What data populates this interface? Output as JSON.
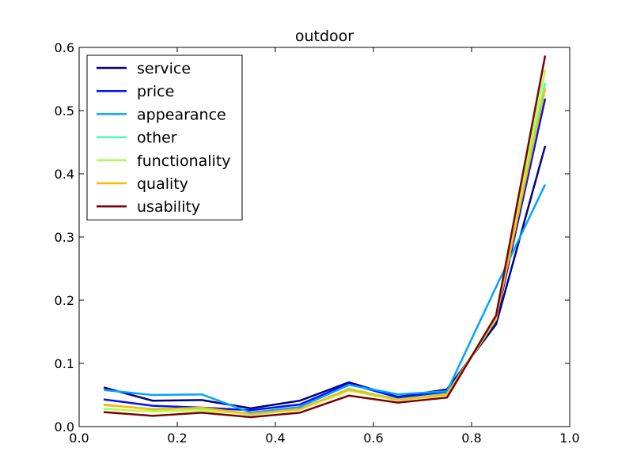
{
  "chart_data": {
    "type": "line",
    "title": "outdoor",
    "xlabel": "",
    "ylabel": "",
    "xlim": [
      0.0,
      1.0
    ],
    "ylim": [
      0.0,
      0.6
    ],
    "x_ticks": [
      "0.0",
      "0.2",
      "0.4",
      "0.6",
      "0.8",
      "1.0"
    ],
    "y_ticks": [
      "0.0",
      "0.1",
      "0.2",
      "0.3",
      "0.4",
      "0.5",
      "0.6"
    ],
    "grid": false,
    "legend_position": "top-left",
    "x": [
      0.05,
      0.15,
      0.25,
      0.35,
      0.45,
      0.55,
      0.65,
      0.75,
      0.85,
      0.95
    ],
    "series": [
      {
        "name": "service",
        "color": "#00007f",
        "values": [
          0.062,
          0.041,
          0.042,
          0.029,
          0.041,
          0.07,
          0.047,
          0.059,
          0.162,
          0.444
        ]
      },
      {
        "name": "price",
        "color": "#0010ff",
        "values": [
          0.043,
          0.033,
          0.03,
          0.026,
          0.035,
          0.068,
          0.046,
          0.055,
          0.168,
          0.519
        ]
      },
      {
        "name": "appearance",
        "color": "#00a4ff",
        "values": [
          0.058,
          0.05,
          0.051,
          0.022,
          0.031,
          0.066,
          0.051,
          0.056,
          0.221,
          0.383
        ]
      },
      {
        "name": "other",
        "color": "#49ffad",
        "values": [
          0.034,
          0.028,
          0.029,
          0.019,
          0.027,
          0.06,
          0.043,
          0.052,
          0.172,
          0.544
        ]
      },
      {
        "name": "functionality",
        "color": "#adff49",
        "values": [
          0.028,
          0.024,
          0.026,
          0.02,
          0.027,
          0.057,
          0.042,
          0.05,
          0.17,
          0.565
        ]
      },
      {
        "name": "quality",
        "color": "#ffb900",
        "values": [
          0.035,
          0.027,
          0.03,
          0.02,
          0.028,
          0.059,
          0.042,
          0.051,
          0.172,
          0.535
        ]
      },
      {
        "name": "usability",
        "color": "#7f0000",
        "values": [
          0.023,
          0.017,
          0.022,
          0.015,
          0.022,
          0.049,
          0.038,
          0.046,
          0.176,
          0.587
        ]
      }
    ]
  }
}
